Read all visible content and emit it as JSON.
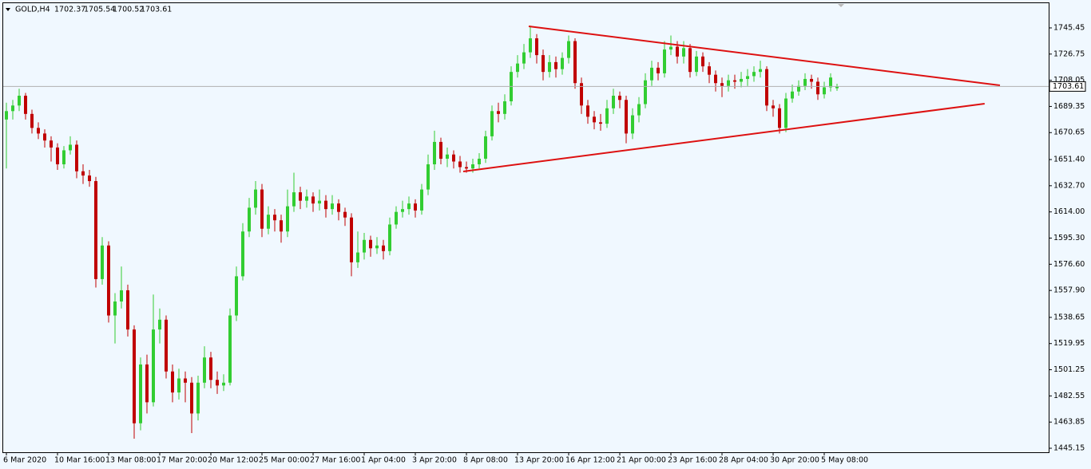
{
  "chart_data": {
    "type": "candlestick",
    "symbol": "GOLD,H4",
    "up_color": "#32cd32",
    "down_color": "#c00000",
    "trendline_color": "#dd1111",
    "price_line_color": "#b0b0b0",
    "categories": [
      "6 Mar 2020",
      null,
      null,
      null,
      null,
      null,
      null,
      null,
      "10 Mar 16:00",
      null,
      null,
      null,
      null,
      null,
      null,
      null,
      "13 Mar 08:00",
      null,
      null,
      null,
      null,
      null,
      null,
      null,
      "17 Mar 20:00",
      null,
      null,
      null,
      null,
      null,
      null,
      null,
      "20 Mar 12:00",
      null,
      null,
      null,
      null,
      null,
      null,
      null,
      "25 Mar 00:00",
      null,
      null,
      null,
      null,
      null,
      null,
      null,
      "27 Mar 16:00",
      null,
      null,
      null,
      null,
      null,
      null,
      null,
      "1 Apr 04:00",
      null,
      null,
      null,
      null,
      null,
      null,
      null,
      "3 Apr 20:00",
      null,
      null,
      null,
      null,
      null,
      null,
      null,
      "8 Apr 08:00",
      null,
      null,
      null,
      null,
      null,
      null,
      null,
      "13 Apr 20:00",
      null,
      null,
      null,
      null,
      null,
      null,
      null,
      "16 Apr 12:00",
      null,
      null,
      null,
      null,
      null,
      null,
      null,
      "21 Apr 00:00",
      null,
      null,
      null,
      null,
      null,
      null,
      null,
      "23 Apr 16:00",
      null,
      null,
      null,
      null,
      null,
      null,
      null,
      "28 Apr 04:00",
      null,
      null,
      null,
      null,
      null,
      null,
      null,
      "30 Apr 20:00",
      null,
      null,
      null,
      null,
      null,
      null,
      null,
      "5 May 08:00",
      null,
      null
    ],
    "open": [
      1680,
      1686,
      1690,
      1697,
      1684,
      1674,
      1670,
      1665,
      1660,
      1648,
      1658,
      1662,
      1643,
      1640,
      1636,
      1566,
      1590,
      1540,
      1550,
      1558,
      1530,
      1463,
      1505,
      1478,
      1530,
      1537,
      1500,
      1485,
      1495,
      1492,
      1470,
      1492,
      1510,
      1494,
      1490,
      1492,
      1540,
      1568,
      1600,
      1617,
      1630,
      1602,
      1612,
      1608,
      1600,
      1618,
      1628,
      1622,
      1625,
      1620,
      1622,
      1616,
      1620,
      1614,
      1610,
      1578,
      1585,
      1594,
      1588,
      1590,
      1586,
      1605,
      1614,
      1616,
      1620,
      1615,
      1630,
      1648,
      1664,
      1652,
      1655,
      1650,
      1646,
      1645,
      1648,
      1652,
      1668,
      1686,
      1684,
      1693,
      1714,
      1720,
      1728,
      1738,
      1726,
      1714,
      1721,
      1716,
      1724,
      1736,
      1706,
      1690,
      1682,
      1678,
      1677,
      1688,
      1697,
      1694,
      1670,
      1683,
      1691,
      1708,
      1717,
      1713,
      1730,
      1732,
      1725,
      1731,
      1714,
      1725,
      1718,
      1712,
      1706,
      1704,
      1708,
      1707,
      1709,
      1711,
      1714,
      1716,
      1690,
      1688,
      1674,
      1695,
      1700,
      1704,
      1709,
      1707,
      1698,
      1703,
      1702.37
    ],
    "high": [
      1692,
      1694,
      1702,
      1699,
      1687,
      1678,
      1673,
      1668,
      1663,
      1661,
      1668,
      1665,
      1648,
      1644,
      1639,
      1596,
      1593,
      1556,
      1575,
      1562,
      1533,
      1510,
      1512,
      1555,
      1545,
      1540,
      1505,
      1502,
      1500,
      1496,
      1497,
      1518,
      1514,
      1500,
      1498,
      1545,
      1575,
      1606,
      1624,
      1636,
      1634,
      1618,
      1616,
      1612,
      1630,
      1642,
      1632,
      1630,
      1628,
      1630,
      1626,
      1626,
      1623,
      1617,
      1613,
      1600,
      1599,
      1597,
      1596,
      1594,
      1610,
      1618,
      1622,
      1625,
      1623,
      1634,
      1655,
      1672,
      1667,
      1660,
      1658,
      1654,
      1650,
      1652,
      1656,
      1672,
      1690,
      1692,
      1698,
      1718,
      1726,
      1734,
      1747,
      1741,
      1730,
      1726,
      1725,
      1728,
      1740,
      1738,
      1710,
      1694,
      1686,
      1684,
      1694,
      1702,
      1700,
      1697,
      1688,
      1696,
      1713,
      1722,
      1721,
      1736,
      1740,
      1736,
      1736,
      1734,
      1729,
      1728,
      1721,
      1715,
      1710,
      1712,
      1712,
      1714,
      1716,
      1718,
      1722,
      1718,
      1694,
      1691,
      1699,
      1705,
      1708,
      1713,
      1712,
      1710,
      1707,
      1713,
      1705.54
    ],
    "low": [
      1645,
      1680,
      1686,
      1680,
      1670,
      1666,
      1660,
      1650,
      1644,
      1645,
      1655,
      1638,
      1634,
      1632,
      1560,
      1562,
      1535,
      1520,
      1545,
      1525,
      1452,
      1458,
      1470,
      1475,
      1520,
      1495,
      1478,
      1480,
      1478,
      1456,
      1465,
      1488,
      1488,
      1484,
      1486,
      1490,
      1536,
      1565,
      1596,
      1612,
      1596,
      1598,
      1600,
      1592,
      1596,
      1614,
      1616,
      1617,
      1614,
      1615,
      1610,
      1612,
      1608,
      1604,
      1568,
      1574,
      1580,
      1582,
      1584,
      1580,
      1583,
      1602,
      1610,
      1612,
      1610,
      1612,
      1626,
      1644,
      1648,
      1646,
      1645,
      1642,
      1642,
      1642,
      1645,
      1649,
      1665,
      1678,
      1680,
      1690,
      1710,
      1716,
      1724,
      1720,
      1708,
      1710,
      1710,
      1712,
      1720,
      1702,
      1684,
      1677,
      1673,
      1672,
      1674,
      1684,
      1688,
      1663,
      1666,
      1678,
      1688,
      1704,
      1708,
      1710,
      1726,
      1720,
      1720,
      1710,
      1711,
      1714,
      1706,
      1700,
      1696,
      1700,
      1702,
      1703,
      1704,
      1707,
      1710,
      1686,
      1682,
      1670,
      1671,
      1692,
      1697,
      1701,
      1702,
      1694,
      1695,
      1700,
      1700.52
    ],
    "close": [
      1686,
      1690,
      1697,
      1684,
      1674,
      1670,
      1665,
      1660,
      1648,
      1658,
      1662,
      1643,
      1640,
      1636,
      1566,
      1590,
      1540,
      1550,
      1558,
      1530,
      1463,
      1505,
      1478,
      1530,
      1537,
      1500,
      1485,
      1495,
      1492,
      1470,
      1492,
      1510,
      1494,
      1490,
      1492,
      1540,
      1568,
      1600,
      1617,
      1630,
      1602,
      1612,
      1608,
      1600,
      1618,
      1628,
      1622,
      1625,
      1620,
      1622,
      1616,
      1620,
      1614,
      1610,
      1578,
      1585,
      1594,
      1588,
      1590,
      1586,
      1605,
      1614,
      1616,
      1620,
      1615,
      1630,
      1648,
      1664,
      1652,
      1655,
      1650,
      1646,
      1645,
      1648,
      1652,
      1668,
      1686,
      1684,
      1693,
      1714,
      1720,
      1728,
      1738,
      1726,
      1714,
      1721,
      1716,
      1724,
      1736,
      1706,
      1690,
      1682,
      1678,
      1677,
      1688,
      1697,
      1694,
      1670,
      1683,
      1691,
      1708,
      1717,
      1713,
      1730,
      1732,
      1725,
      1731,
      1714,
      1725,
      1718,
      1712,
      1706,
      1704,
      1708,
      1707,
      1709,
      1711,
      1714,
      1716,
      1690,
      1688,
      1674,
      1695,
      1700,
      1704,
      1709,
      1707,
      1698,
      1703,
      1710,
      1703.61
    ],
    "trendlines": [
      {
        "x": [
          81.75,
          155.5
        ],
        "y": [
          1746.6,
          1704.4
        ]
      },
      {
        "x": [
          71.5,
          153.1
        ],
        "y": [
          1642.9,
          1691.3
        ]
      }
    ],
    "ylim": [
      1442.3,
      1763.1
    ],
    "yticks": [
      1745.45,
      1726.75,
      1708.05,
      1689.35,
      1670.65,
      {
        "value": 1651.4,
        "label": "1651.40"
      },
      {
        "value": 1632.7,
        "label": "1632.70"
      },
      {
        "value": 1614,
        "label": "1614.00"
      },
      {
        "value": 1595.3,
        "label": "1595.30"
      },
      {
        "value": 1576.6,
        "label": "1576.60"
      },
      {
        "value": 1557.9,
        "label": "1557.90"
      },
      1538.65,
      1519.95,
      1501.25,
      1482.55,
      1463.85,
      1445.15
    ]
  }
}
